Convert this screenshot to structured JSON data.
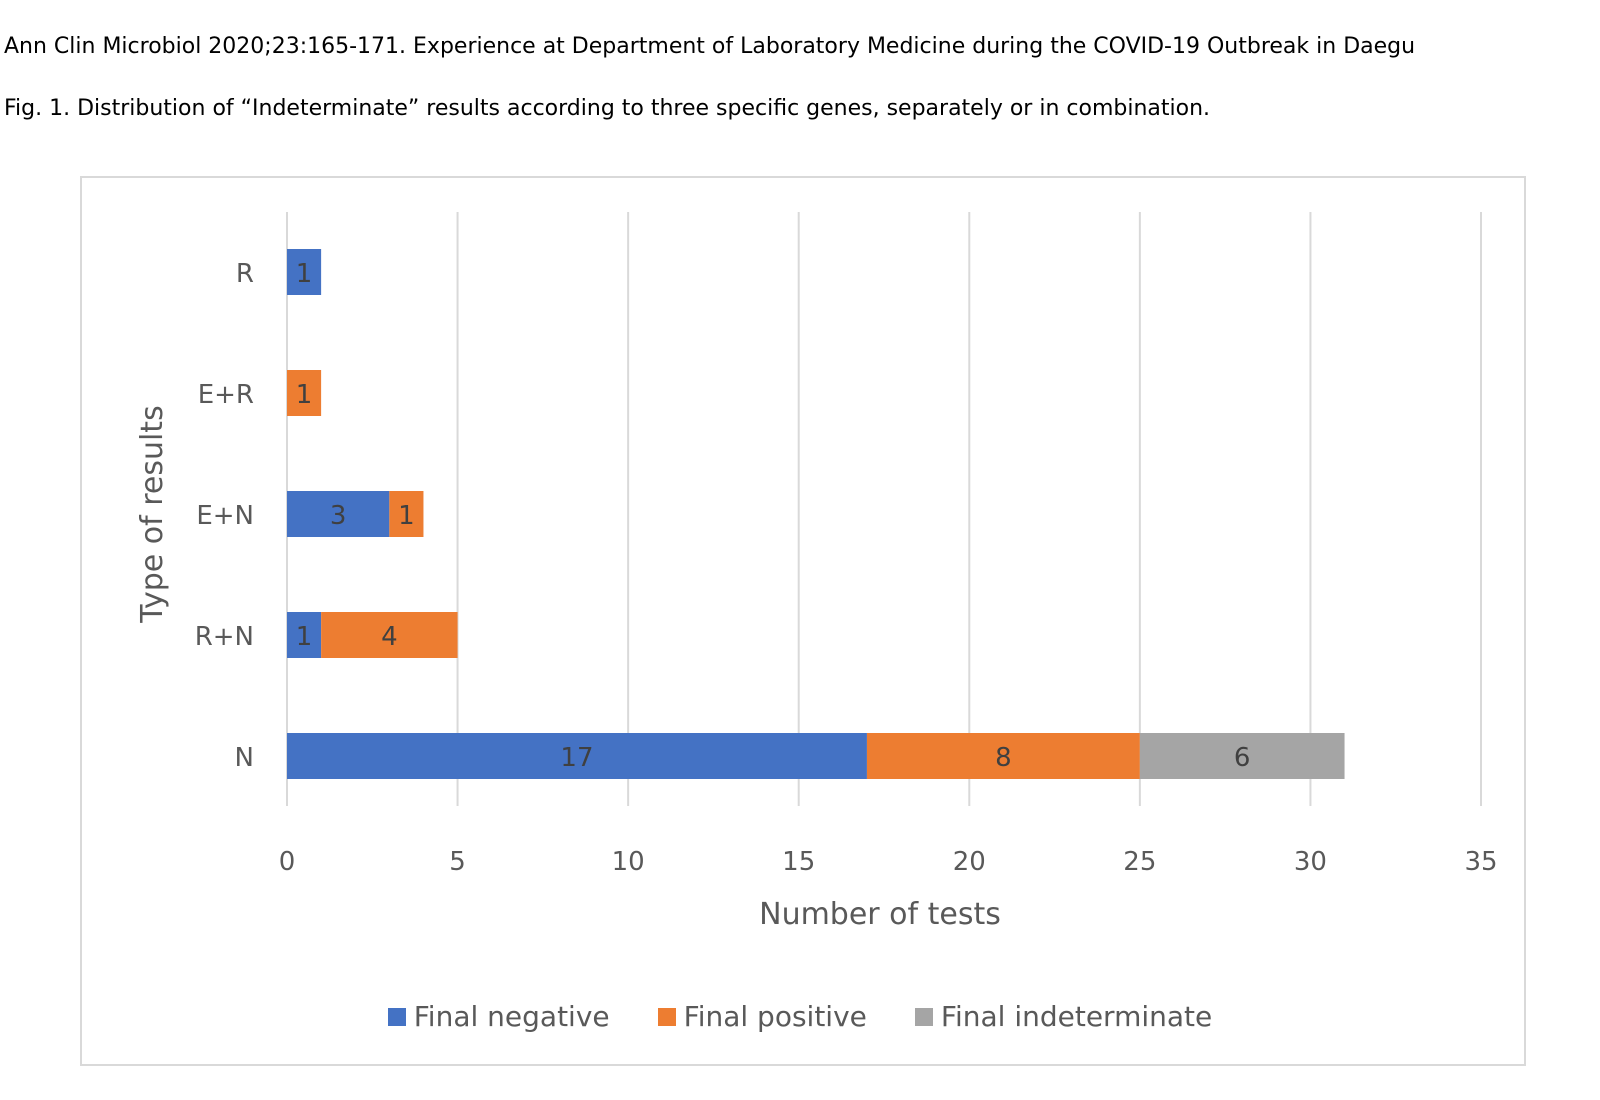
{
  "captions": {
    "journal_line": "Ann Clin Microbiol 2020;23:165-171. Experience at Department of Laboratory Medicine during the COVID-19 Outbreak in Daegu",
    "figure_line": "Fig. 1. Distribution of “Indeterminate” results according to three specific genes, separately or in combination."
  },
  "colors": {
    "negative": "#4472c4",
    "positive": "#ed7d31",
    "indeterminate": "#a5a5a5",
    "gridline": "#d9d9d9",
    "axis_text": "#595959",
    "label_text": "#404040"
  },
  "chart_data": {
    "type": "bar",
    "orientation": "horizontal",
    "stacked": true,
    "categories": [
      "R",
      "E+R",
      "E+N",
      "R+N",
      "N"
    ],
    "series": [
      {
        "name": "Final negative",
        "values": [
          1,
          0,
          3,
          1,
          17
        ]
      },
      {
        "name": "Final positive",
        "values": [
          0,
          1,
          1,
          4,
          8
        ]
      },
      {
        "name": "Final indeterminate",
        "values": [
          0,
          0,
          0,
          0,
          6
        ]
      }
    ],
    "xlabel": "Number of tests",
    "ylabel": "Type of results",
    "xlim": [
      0,
      35
    ],
    "xticks": [
      "0",
      "5",
      "10",
      "15",
      "20",
      "25",
      "30",
      "35"
    ],
    "grid": "vertical",
    "legend_position": "bottom",
    "data_labels": true
  }
}
